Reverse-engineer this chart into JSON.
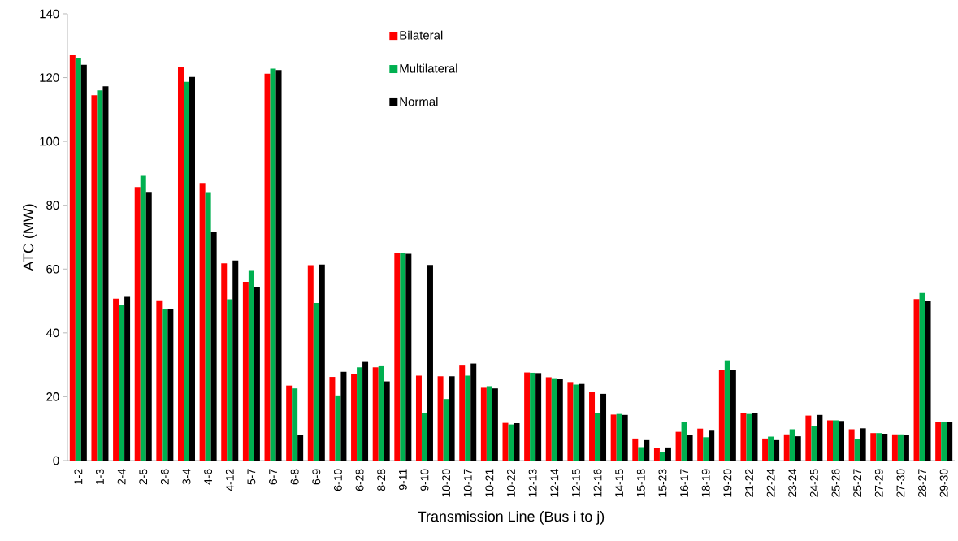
{
  "chart_data": {
    "type": "bar",
    "xlabel": "Transmission Line (Bus i to j)",
    "ylabel": "ATC (MW)",
    "categories": [
      "1-2",
      "1-3",
      "2-4",
      "2-5",
      "2-6",
      "3-4",
      "4-6",
      "4-12",
      "5-7",
      "6-7",
      "6-8",
      "6-9",
      "6-10",
      "6-28",
      "8-28",
      "9-11",
      "9-10",
      "10-20",
      "10-17",
      "10-21",
      "10-22",
      "12-13",
      "12-14",
      "12-15",
      "12-16",
      "14-15",
      "15-18",
      "15-23",
      "16-17",
      "18-19",
      "19-20",
      "21-22",
      "22-24",
      "23-24",
      "24-25",
      "25-26",
      "25-27",
      "27-29",
      "27-30",
      "28-27",
      "29-30"
    ],
    "series": [
      {
        "name": "Bilateral",
        "color": "#ff0000",
        "values": [
          127,
          114.5,
          50.7,
          85.7,
          50.2,
          123.2,
          87,
          61.8,
          56,
          121.2,
          23.5,
          61.2,
          26.2,
          27.1,
          29.2,
          65,
          26.6,
          26.4,
          30,
          22.8,
          11.8,
          27.6,
          26.1,
          24.6,
          21.6,
          14.4,
          6.9,
          4,
          9,
          10,
          28.5,
          15,
          6.9,
          8.2,
          14.1,
          12.6,
          9.8,
          8.6,
          8.2,
          50.6,
          12.2
        ]
      },
      {
        "name": "Multilateral",
        "color": "#00b050",
        "values": [
          126,
          116,
          48.7,
          89.2,
          47.6,
          118.7,
          84.1,
          50.5,
          59.7,
          122.8,
          22.6,
          49.4,
          20.4,
          29.2,
          29.8,
          65,
          14.9,
          19.3,
          26.6,
          23.3,
          11.3,
          27.5,
          25.8,
          23.8,
          15,
          14.6,
          4.2,
          2.6,
          12.1,
          7.3,
          31.4,
          14.6,
          7.5,
          9.8,
          10.9,
          12.6,
          6.8,
          8.6,
          8.2,
          52.5,
          12.2
        ]
      },
      {
        "name": "Normal",
        "color": "#000000",
        "values": [
          124,
          117.3,
          51.3,
          84.2,
          47.6,
          120.2,
          71.7,
          62.7,
          54.5,
          122.4,
          7.9,
          61.4,
          27.8,
          30.9,
          24.8,
          64.8,
          61.3,
          26.4,
          30.4,
          22.6,
          11.7,
          27.4,
          25.7,
          24,
          20.9,
          14.3,
          6.4,
          4.1,
          8.1,
          9.6,
          28.5,
          14.8,
          6.4,
          7.6,
          14.3,
          12.4,
          10.1,
          8.4,
          8,
          50,
          12
        ]
      }
    ],
    "ylim": [
      0,
      140
    ],
    "yticks": [
      0,
      20,
      40,
      60,
      80,
      100,
      120,
      140
    ],
    "grid": false,
    "legend": "top"
  }
}
